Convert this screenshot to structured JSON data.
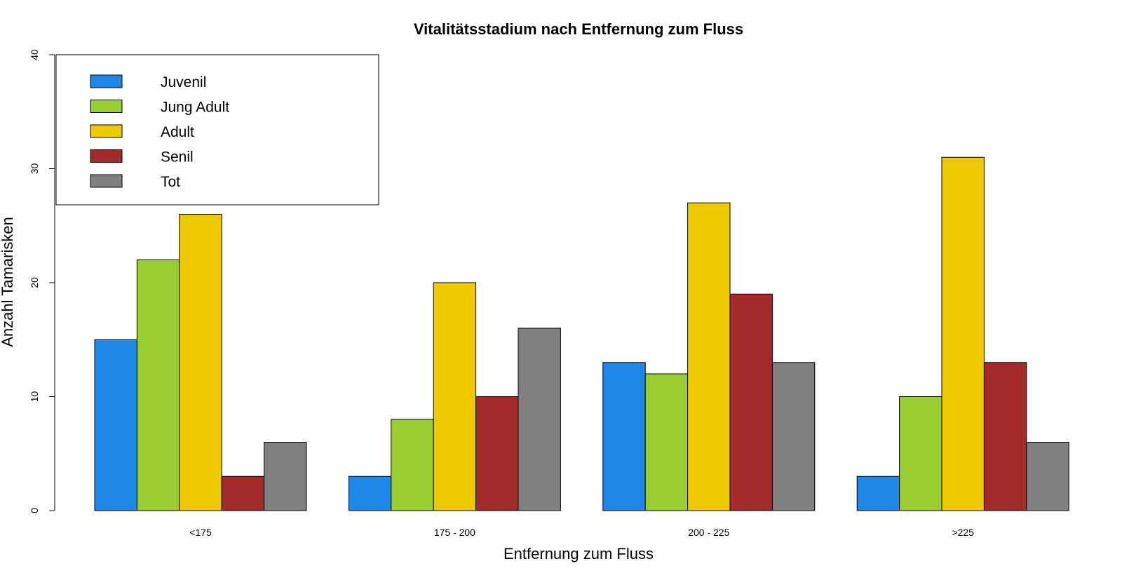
{
  "chart_data": {
    "type": "bar",
    "title": "Vitalitätsstadium nach Entfernung zum Fluss",
    "xlabel": "Entfernung zum Fluss",
    "ylabel": "Anzahl Tamarisken",
    "ylim": [
      0,
      40
    ],
    "yticks": [
      "0",
      "10",
      "20",
      "30",
      "40"
    ],
    "categories": [
      "<175",
      "175 - 200",
      "200 - 225",
      ">225"
    ],
    "grid": false,
    "legend_position": "top-left",
    "series": [
      {
        "name": "Juvenil",
        "color": "#1e88e8",
        "values": [
          15,
          3,
          13,
          3
        ]
      },
      {
        "name": "Jung Adult",
        "color": "#9acd32",
        "values": [
          22,
          8,
          12,
          10
        ]
      },
      {
        "name": "Adult",
        "color": "#eec900",
        "values": [
          26,
          20,
          27,
          31
        ]
      },
      {
        "name": "Senil",
        "color": "#a52a2a",
        "values": [
          3,
          10,
          19,
          13
        ]
      },
      {
        "name": "Tot",
        "color": "#808080",
        "values": [
          6,
          16,
          13,
          6
        ]
      }
    ]
  }
}
